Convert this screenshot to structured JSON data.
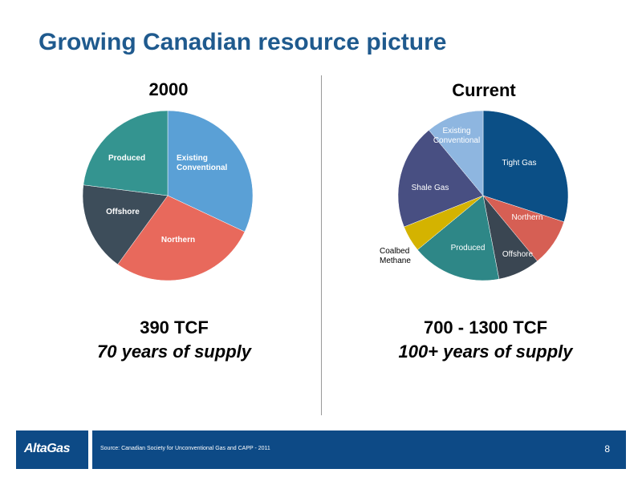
{
  "header": {
    "title": "Growing Canadian resource picture"
  },
  "chart_data": [
    {
      "type": "pie",
      "title": "2000",
      "slices": [
        {
          "label": "Existing\nConventional",
          "value": 32,
          "color": "#5aa0d6",
          "label_color": "#ffffff"
        },
        {
          "label": "Northern",
          "value": 28,
          "color": "#e8695c",
          "label_color": "#ffffff"
        },
        {
          "label": "Offshore",
          "value": 17,
          "color": "#3d4d5a",
          "label_color": "#ffffff"
        },
        {
          "label": "Produced",
          "value": 23,
          "color": "#349490",
          "label_color": "#ffffff"
        }
      ],
      "summary": {
        "volume": "390 TCF",
        "supply": "70 years of supply"
      }
    },
    {
      "type": "pie",
      "title": "Current",
      "slices": [
        {
          "label": "Tight Gas",
          "value": 30,
          "color": "#0b4f86",
          "label_color": "#ffffff"
        },
        {
          "label": "Northern",
          "value": 9,
          "color": "#d65f54",
          "label_color": "#ffffff"
        },
        {
          "label": "Offshore",
          "value": 8,
          "color": "#3a4652",
          "label_color": "#ffffff"
        },
        {
          "label": "Produced",
          "value": 17,
          "color": "#2e8787",
          "label_color": "#ffffff"
        },
        {
          "label": "Coalbed\nMethane",
          "value": 5,
          "color": "#d4b300",
          "label_color": "#000000"
        },
        {
          "label": "Shale Gas",
          "value": 20,
          "color": "#484f82",
          "label_color": "#ffffff"
        },
        {
          "label": "Existing\nConventional",
          "value": 11,
          "color": "#8eb6e0",
          "label_color": "#ffffff"
        }
      ],
      "summary": {
        "volume": "700 - 1300 TCF",
        "supply": "100+ years of supply"
      }
    }
  ],
  "footer": {
    "logo": "AltaGas",
    "source": "Source: Canadian Society for Unconventional Gas and CAPP - 2011",
    "page_number": "8"
  }
}
